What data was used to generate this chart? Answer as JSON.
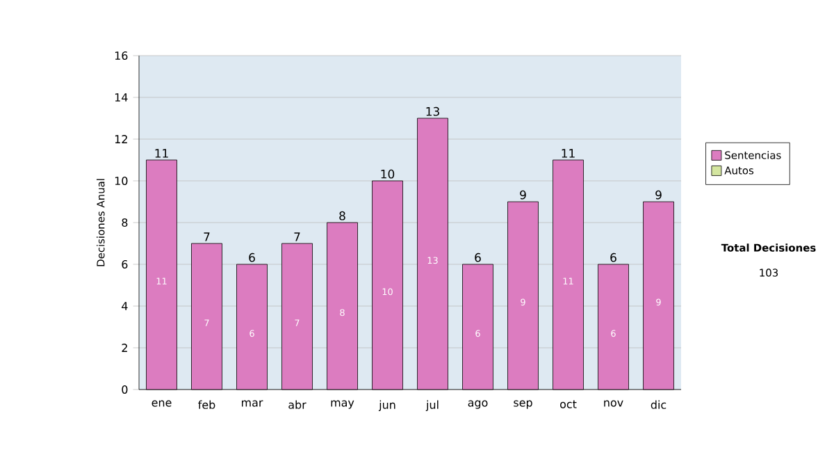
{
  "chart_data": {
    "type": "bar",
    "stacked": true,
    "ylabel": "Decisiones Anual",
    "categories": [
      "ene",
      "feb",
      "mar",
      "abr",
      "may",
      "jun",
      "jul",
      "ago",
      "sep",
      "oct",
      "nov",
      "dic"
    ],
    "series": [
      {
        "name": "Sentencias",
        "color": "#dc7cc0",
        "values": [
          11,
          7,
          6,
          7,
          8,
          10,
          13,
          6,
          9,
          11,
          6,
          9
        ],
        "value_labels": [
          "11",
          "7",
          "6",
          "7",
          "8",
          "10",
          "13",
          "6",
          "9",
          "11",
          "6",
          "9"
        ]
      },
      {
        "name": "Autos",
        "color": "#d4e6a0",
        "values": [
          0,
          0,
          0,
          0,
          0,
          0,
          0,
          0,
          0,
          0,
          0,
          0
        ]
      }
    ],
    "totals": [
      "11",
      "7",
      "6",
      "7",
      "8",
      "10",
      "13",
      "6",
      "9",
      "11",
      "6",
      "9"
    ],
    "ylim": [
      0,
      16
    ],
    "yticks": [
      0,
      2,
      4,
      6,
      8,
      10,
      12,
      14,
      16
    ],
    "grid": "y",
    "legend": "right",
    "annotations": [
      "Total Decisiones",
      "103"
    ]
  }
}
